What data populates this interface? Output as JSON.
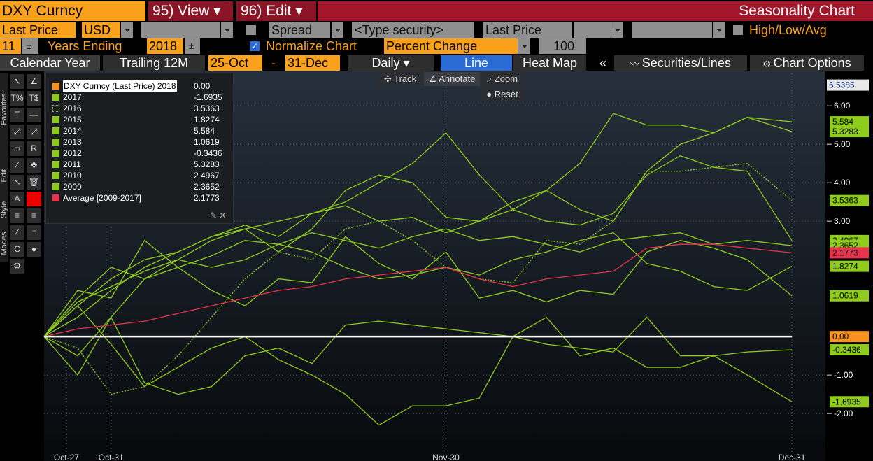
{
  "toolbar": {
    "security": "DXY Curncy",
    "view": "95) View",
    "edit": "96) Edit",
    "title": "Seasonality Chart",
    "price_field": "Last Price",
    "currency": "USD",
    "spread": "Spread",
    "type_security": "<Type security>",
    "price_field2": "Last Price",
    "high_low_avg": "High/Low/Avg",
    "years": 11,
    "years_ending": "Years Ending",
    "end_year": 2018,
    "normalize": "Normalize Chart",
    "mode": "Percent Change",
    "base": 100,
    "tabs": [
      "Calendar Year",
      "Trailing 12M"
    ],
    "start": "25-Oct",
    "dash": "-",
    "end": "31-Dec",
    "frequency": "Daily",
    "views": [
      "Line",
      "Heat Map"
    ],
    "collapse": "«",
    "securities": "Securities/Lines",
    "options": "Chart Options"
  },
  "plot_tools": [
    "Track",
    "Annotate",
    "Zoom"
  ],
  "reset": "Reset",
  "side_tabs": [
    "Favorites",
    "Edit",
    "Style",
    "Modes"
  ],
  "chart_data": {
    "type": "line",
    "x": [
      0,
      3,
      6,
      9,
      12,
      15,
      18,
      21,
      24,
      27,
      30,
      33,
      36,
      39,
      42,
      45,
      48,
      51,
      54,
      57,
      60,
      63,
      67
    ],
    "xlim": [
      0,
      70
    ],
    "xticks": [
      {
        "value": 2,
        "label": "Oct-27"
      },
      {
        "value": 6,
        "label": "Oct-31"
      },
      {
        "value": 36,
        "label": "Nov-30"
      },
      {
        "value": 67,
        "label": "Dec-31"
      }
    ],
    "ylim": [
      -2.98,
      6.84
    ],
    "yticks": [
      {
        "value": 6,
        "label": "6.00"
      },
      {
        "value": 5,
        "label": "5.00"
      },
      {
        "value": 4,
        "label": "4.00"
      },
      {
        "value": 3,
        "label": "3.00"
      },
      {
        "value": -1,
        "label": "-1.00"
      },
      {
        "value": -2,
        "label": "-2.00"
      }
    ],
    "axis_max": 6.5385,
    "grid": true,
    "series": [
      {
        "name": "DXY Curncy (Last Price) 2018",
        "color": "#ffffff",
        "swatch": "#f7931e",
        "values": [
          0,
          0,
          0,
          0,
          0,
          0,
          0,
          0,
          0,
          0,
          0,
          0,
          0,
          0,
          0,
          0,
          0,
          0,
          0,
          0,
          0,
          0,
          0
        ],
        "value_labels": [
          null,
          null,
          null,
          null,
          null,
          null,
          null,
          null,
          null,
          null,
          null,
          null,
          null,
          null,
          null,
          null,
          null,
          null,
          null,
          null,
          null,
          null,
          "0.00"
        ]
      },
      {
        "name": "2017",
        "color": "#8fcc1e",
        "values": [
          0,
          0.8,
          -0.2,
          -1.3,
          -0.8,
          -0.3,
          0.0,
          -0.6,
          -1.0,
          -1.5,
          -2.3,
          -1.8,
          -1.8,
          -1.6,
          0.0,
          0.5,
          -0.5,
          -0.3,
          -0.8,
          -0.8,
          -0.5,
          -1.0,
          -1.6935
        ]
      },
      {
        "name": "2016",
        "color": "#8fcc1e",
        "dash": true,
        "values": [
          0,
          -0.3,
          -1.5,
          -1.3,
          -0.5,
          0.5,
          1.5,
          2.2,
          2.0,
          2.8,
          3.0,
          2.5,
          1.8,
          1.5,
          1.4,
          2.5,
          2.4,
          3.0,
          4.3,
          4.3,
          4.4,
          4.5,
          3.5363
        ]
      },
      {
        "name": "2015",
        "color": "#8fcc1e",
        "values": [
          0,
          1.2,
          1.0,
          2.5,
          1.8,
          2.1,
          2.5,
          2.4,
          2.2,
          1.8,
          1.5,
          1.6,
          1.8,
          1.6,
          2.0,
          2.2,
          2.5,
          2.7,
          1.9,
          1.7,
          1.3,
          1.2,
          1.8274
        ]
      },
      {
        "name": "2014",
        "color": "#8fcc1e",
        "values": [
          0,
          0.5,
          1.2,
          1.8,
          2.2,
          2.6,
          2.8,
          3.0,
          3.2,
          3.5,
          4.0,
          4.5,
          5.3,
          4.2,
          3.3,
          3.8,
          4.5,
          5.8,
          5.5,
          5.5,
          5.3,
          5.7,
          5.584
        ]
      },
      {
        "name": "2013",
        "color": "#8fcc1e",
        "values": [
          0,
          -0.5,
          0.5,
          1.5,
          1.8,
          1.2,
          0.8,
          1.5,
          1.4,
          2.6,
          1.9,
          1.5,
          2.2,
          1.0,
          1.2,
          0.9,
          1.2,
          1.1,
          2.2,
          2.5,
          2.3,
          2.0,
          1.0619
        ]
      },
      {
        "name": "2012",
        "color": "#8fcc1e",
        "values": [
          0,
          -1.0,
          0.5,
          -1.2,
          -1.5,
          -1.3,
          -0.5,
          -0.3,
          -0.7,
          0.3,
          0.4,
          0.3,
          0.2,
          0.1,
          0.0,
          -0.2,
          -0.3,
          -0.4,
          0.5,
          -0.5,
          -0.5,
          -0.4,
          -0.3436
        ]
      },
      {
        "name": "2011",
        "color": "#8fcc1e",
        "values": [
          0,
          1.0,
          1.8,
          1.5,
          2.0,
          2.5,
          2.8,
          2.2,
          2.8,
          3.8,
          4.2,
          4.0,
          3.1,
          3.0,
          3.5,
          3.8,
          3.3,
          3.0,
          4.3,
          5.0,
          5.3,
          5.7,
          5.3283
        ]
      },
      {
        "name": "2010",
        "color": "#8fcc1e",
        "values": [
          0,
          0.8,
          1.5,
          2.0,
          2.2,
          2.6,
          2.9,
          2.6,
          3.2,
          3.4,
          3.0,
          3.1,
          2.7,
          3.0,
          3.3,
          3.0,
          2.9,
          3.2,
          4.2,
          4.7,
          4.4,
          4.3,
          2.4967
        ]
      },
      {
        "name": "2009",
        "color": "#8fcc1e",
        "values": [
          0,
          0.9,
          1.3,
          1.7,
          2.0,
          1.8,
          2.0,
          2.4,
          2.7,
          2.5,
          2.3,
          2.6,
          2.8,
          2.5,
          2.6,
          2.4,
          2.2,
          2.5,
          2.6,
          2.7,
          2.4,
          2.5,
          2.3652
        ]
      },
      {
        "name": "Average [2009-2017]",
        "color": "#e8334d",
        "values": [
          0,
          0.2,
          0.3,
          0.4,
          0.6,
          0.8,
          1.0,
          1.2,
          1.3,
          1.5,
          1.6,
          1.7,
          1.8,
          1.5,
          1.3,
          1.5,
          1.6,
          1.7,
          2.3,
          2.4,
          2.4,
          2.3,
          2.1773
        ]
      }
    ]
  }
}
